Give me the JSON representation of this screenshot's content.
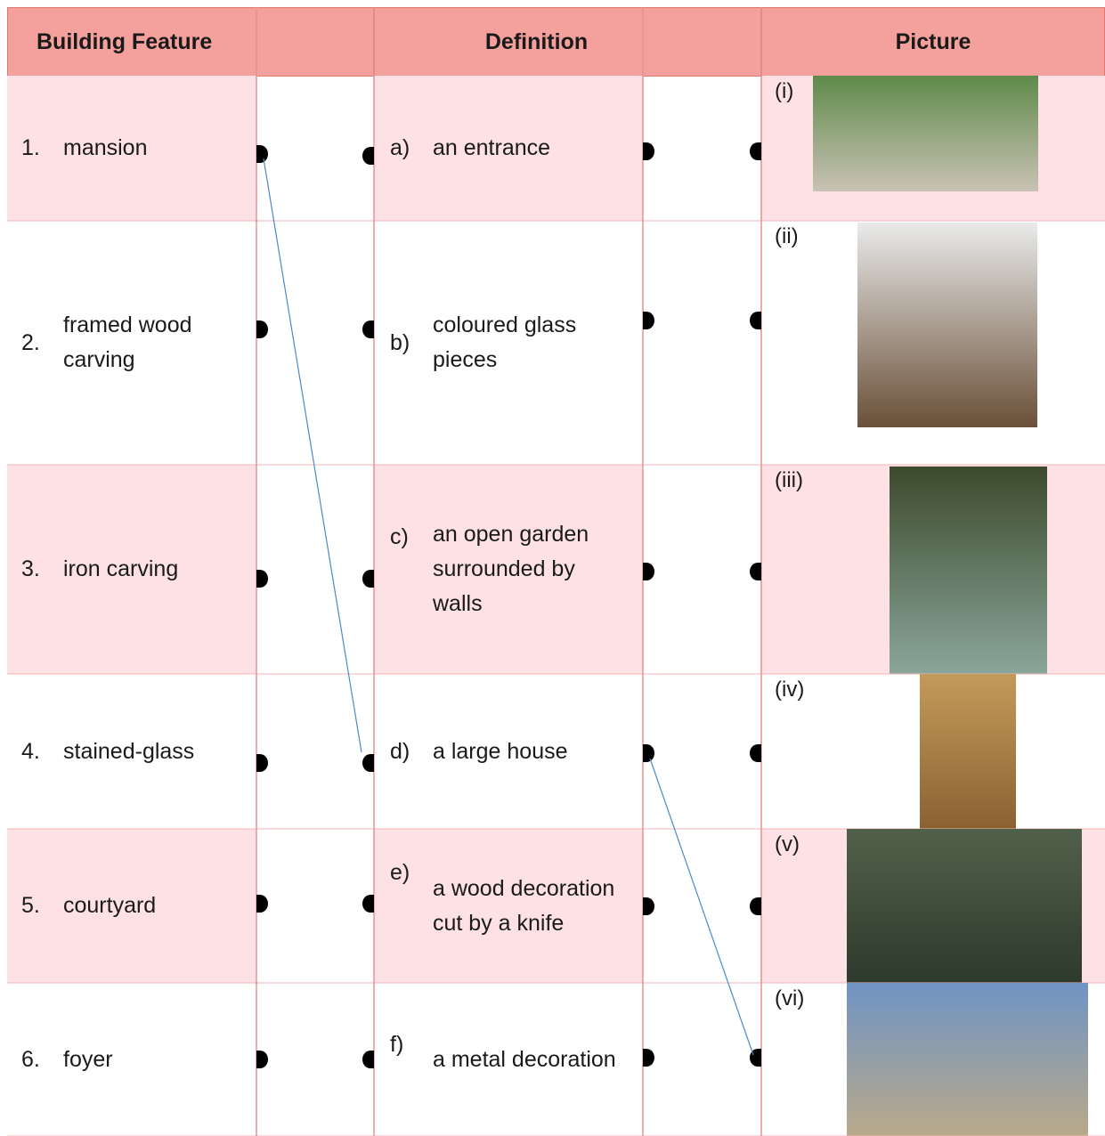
{
  "header": {
    "feature": "Building Feature",
    "definition": "Definition",
    "picture": "Picture"
  },
  "features": [
    {
      "number": "1.",
      "text": "mansion"
    },
    {
      "number": "2.",
      "text": "framed wood carving"
    },
    {
      "number": "3.",
      "text": "iron carving"
    },
    {
      "number": "4.",
      "text": "stained-glass"
    },
    {
      "number": "5.",
      "text": "courtyard"
    },
    {
      "number": "6.",
      "text": "foyer"
    }
  ],
  "definitions": [
    {
      "letter": "a)",
      "text": "an entrance"
    },
    {
      "letter": "b)",
      "text": "coloured glass pieces"
    },
    {
      "letter": "c)",
      "text": "an open garden surrounded by walls"
    },
    {
      "letter": "d)",
      "text": "a large house"
    },
    {
      "letter": "e)",
      "text": "a wood decoration cut by a knife"
    },
    {
      "letter": "f)",
      "text": "a metal decoration"
    }
  ],
  "pictures": [
    "(i)",
    "(ii)",
    "(iii)",
    "(iv)",
    "(v)",
    "(vi)"
  ]
}
